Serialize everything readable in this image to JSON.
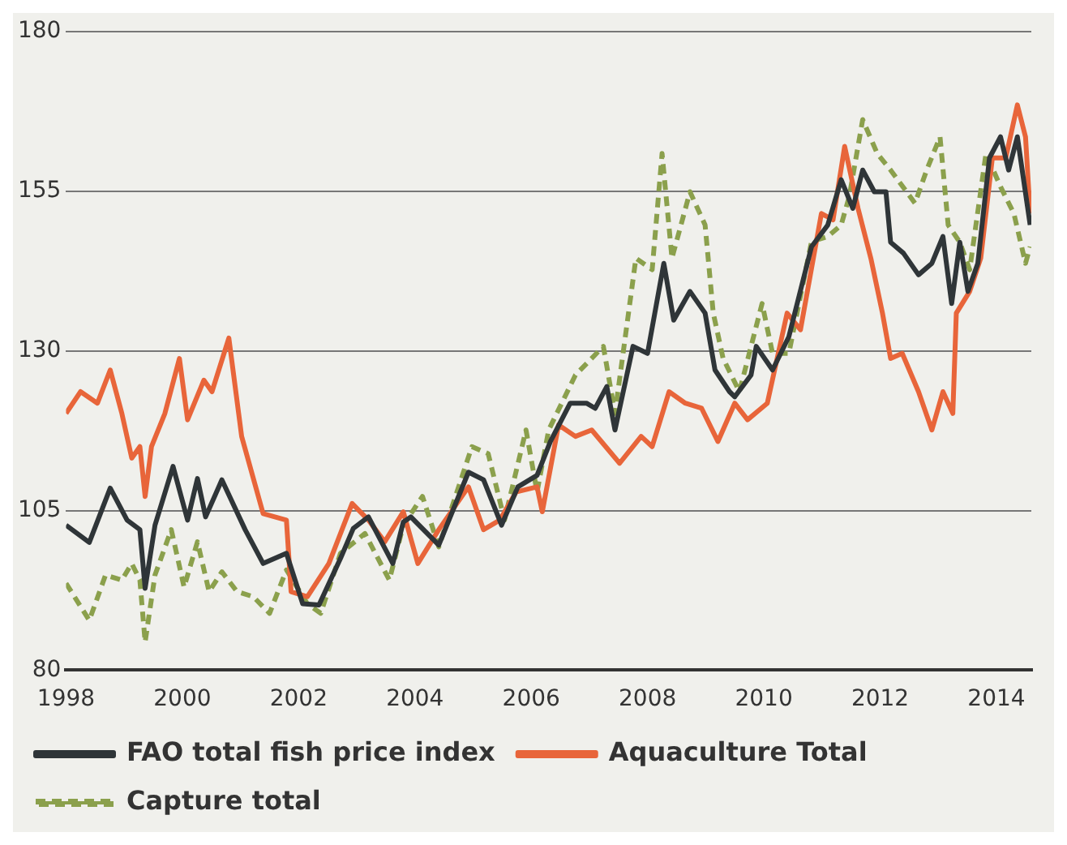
{
  "chart_data": {
    "type": "line",
    "xlim": [
      1998,
      2014.6
    ],
    "xticks": [
      1998,
      2000,
      2002,
      2004,
      2006,
      2008,
      2010,
      2012,
      2014
    ],
    "ylim": [
      80,
      180
    ],
    "yticks": [
      80,
      105,
      130,
      155,
      180
    ],
    "grid": "y",
    "legend": "bottom",
    "marker": "none",
    "series": [
      {
        "name": "FAO total fish price index",
        "color": "#2f3538",
        "line_style": "solid",
        "x": [
          1998.0,
          1998.4,
          1998.76,
          1999.05,
          1999.27,
          1999.36,
          1999.53,
          1999.84,
          2000.09,
          2000.26,
          2000.4,
          2000.68,
          2001.08,
          2001.39,
          2001.79,
          2002.07,
          2002.35,
          2002.72,
          2002.94,
          2003.2,
          2003.62,
          2003.8,
          2003.93,
          2004.41,
          2004.92,
          2005.18,
          2005.49,
          2005.77,
          2006.1,
          2006.33,
          2006.67,
          2006.95,
          2007.1,
          2007.3,
          2007.44,
          2007.75,
          2008.0,
          2008.28,
          2008.45,
          2008.73,
          2008.99,
          2009.16,
          2009.41,
          2009.5,
          2009.78,
          2009.87,
          2010.15,
          2010.43,
          2010.82,
          2011.1,
          2011.33,
          2011.53,
          2011.7,
          2011.9,
          2012.1,
          2012.18,
          2012.4,
          2012.66,
          2012.89,
          2013.08,
          2013.23,
          2013.37,
          2013.51,
          2013.68,
          2013.88,
          2014.07,
          2014.21,
          2014.36,
          2014.58
        ],
        "values": [
          102.7,
          100,
          108.5,
          103.5,
          102,
          92.8,
          102.7,
          111.9,
          103.5,
          110,
          104,
          109.8,
          102,
          96.7,
          98.3,
          90.4,
          90.2,
          97.5,
          102.2,
          104,
          96.7,
          103.2,
          104,
          99.6,
          111,
          109.8,
          102.7,
          108.7,
          110.5,
          115.8,
          121.8,
          121.8,
          121,
          124.4,
          117.6,
          130.7,
          129.6,
          143.7,
          134.8,
          139.3,
          135.9,
          127,
          123.6,
          122.8,
          126.2,
          130.7,
          127,
          132.2,
          146.3,
          149.7,
          156.8,
          152.3,
          158.3,
          154.9,
          154.9,
          147,
          145.3,
          141.9,
          143.7,
          147.9,
          137.4,
          147,
          139.3,
          143.7,
          160.2,
          163.5,
          158.3,
          163.5,
          149.7
        ]
      },
      {
        "name": "Aquaculture Total",
        "color": "#e8653a",
        "line_style": "solid",
        "x": [
          1998.0,
          1998.25,
          1998.54,
          1998.76,
          1998.96,
          1999.13,
          1999.27,
          1999.36,
          1999.47,
          1999.7,
          1999.95,
          2000.09,
          2000.37,
          2000.51,
          2000.8,
          2001.02,
          2001.39,
          2001.79,
          2001.87,
          2002.15,
          2002.52,
          2002.92,
          2003.2,
          2003.48,
          2003.8,
          2004.05,
          2004.41,
          2004.92,
          2005.18,
          2005.46,
          2005.74,
          2006.1,
          2006.19,
          2006.47,
          2006.76,
          2007.04,
          2007.52,
          2007.89,
          2008.08,
          2008.37,
          2008.65,
          2008.93,
          2009.21,
          2009.5,
          2009.72,
          2010.06,
          2010.4,
          2010.63,
          2010.99,
          2011.19,
          2011.39,
          2011.62,
          2011.84,
          2012.04,
          2012.18,
          2012.38,
          2012.66,
          2012.89,
          2013.08,
          2013.25,
          2013.31,
          2013.54,
          2013.73,
          2013.93,
          2014.16,
          2014.36,
          2014.5,
          2014.58
        ],
        "values": [
          120.2,
          123.6,
          121.8,
          127,
          120.2,
          113.2,
          115,
          107.2,
          115,
          120.2,
          128.8,
          119.2,
          125.4,
          123.6,
          132,
          116.6,
          104.5,
          103.5,
          92.3,
          91.5,
          96.7,
          106.1,
          103.5,
          100.1,
          104.8,
          96.7,
          102,
          108.7,
          102,
          103.5,
          107.9,
          108.7,
          104.8,
          118.4,
          116.6,
          117.6,
          112.4,
          116.6,
          115,
          123.6,
          121.8,
          121,
          115.8,
          121.8,
          119.2,
          121.8,
          135.9,
          133.3,
          151.5,
          150.5,
          162,
          152.3,
          144.5,
          135.9,
          128.8,
          129.6,
          123.6,
          117.6,
          123.6,
          120.2,
          135.9,
          139.3,
          144.5,
          160.2,
          160.2,
          168.5,
          163.5,
          151.5
        ]
      },
      {
        "name": "Capture total",
        "color": "#8ba04c",
        "line_style": "dashed",
        "x": [
          1998.0,
          1998.4,
          1998.68,
          1998.96,
          1999.13,
          1999.27,
          1999.36,
          1999.53,
          1999.81,
          2000.03,
          2000.26,
          2000.46,
          2000.68,
          2000.94,
          2001.22,
          2001.5,
          2001.79,
          2002.15,
          2002.38,
          2002.72,
          2003.14,
          2003.56,
          2003.8,
          2004.13,
          2004.41,
          2004.98,
          2005.26,
          2005.54,
          2005.91,
          2006.1,
          2006.3,
          2006.76,
          2007.24,
          2007.44,
          2007.8,
          2008.08,
          2008.25,
          2008.42,
          2008.73,
          2008.99,
          2009.13,
          2009.3,
          2009.58,
          2009.97,
          2010.15,
          2010.43,
          2010.82,
          2011.1,
          2011.33,
          2011.47,
          2011.7,
          2011.95,
          2012.18,
          2012.6,
          2012.8,
          2013.03,
          2013.17,
          2013.37,
          2013.54,
          2013.82,
          2014.07,
          2014.3,
          2014.5,
          2014.58
        ],
        "values": [
          93.6,
          87.8,
          94.9,
          94.1,
          96.7,
          94.1,
          84.4,
          94.9,
          102,
          93,
          100.1,
          92.3,
          95.4,
          92.3,
          91.5,
          88.9,
          95.7,
          90.4,
          88.9,
          98.3,
          101.4,
          94.1,
          102.7,
          107.2,
          99.3,
          115,
          113.9,
          103.5,
          117.6,
          107.9,
          117.6,
          126.2,
          130.7,
          120.2,
          144.5,
          142.7,
          160.9,
          144.5,
          154.9,
          149.7,
          135.9,
          128.8,
          123.6,
          137.4,
          129.6,
          129.6,
          147.1,
          147.9,
          149.7,
          154.2,
          166.2,
          160.9,
          158.3,
          153.1,
          158.3,
          163.5,
          149.7,
          147,
          142.7,
          160.9,
          155.7,
          151.5,
          143.7,
          146.3
        ]
      }
    ]
  }
}
